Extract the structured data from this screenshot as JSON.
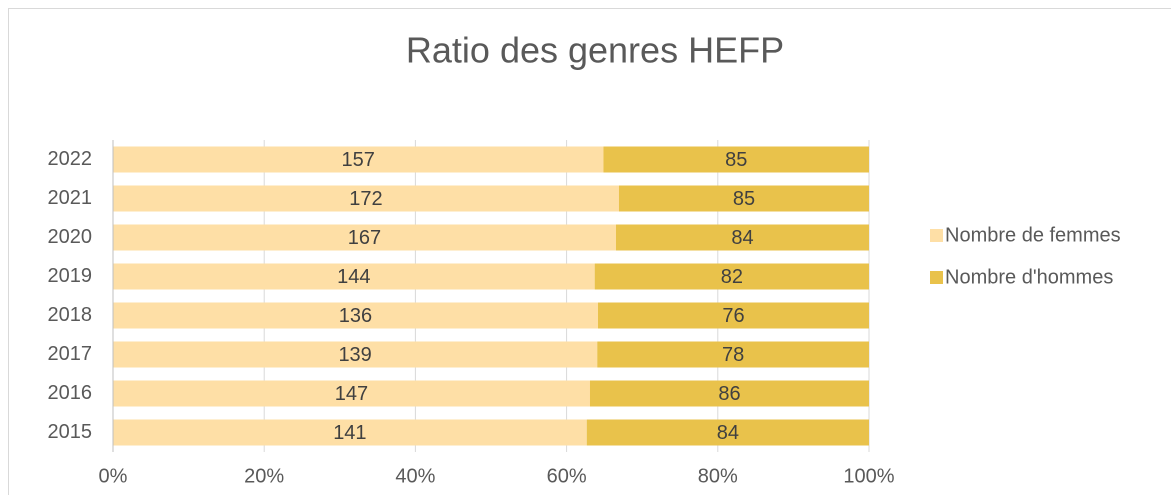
{
  "chart_data": {
    "type": "bar",
    "orientation": "horizontal",
    "stacking": "percent",
    "title": "Ratio des genres HEFP",
    "categories": [
      "2022",
      "2021",
      "2020",
      "2019",
      "2018",
      "2017",
      "2016",
      "2015"
    ],
    "series": [
      {
        "name": "Nombre de femmes",
        "color": "#fedfa6",
        "values": [
          157,
          172,
          167,
          144,
          136,
          139,
          147,
          141
        ]
      },
      {
        "name": "Nombre d'hommes",
        "color": "#e9c24b",
        "values": [
          85,
          85,
          84,
          82,
          76,
          78,
          86,
          84
        ]
      }
    ],
    "xlim": [
      0,
      100
    ],
    "xticks": [
      {
        "value": 0,
        "label": "0%"
      },
      {
        "value": 20,
        "label": "20%"
      },
      {
        "value": 40,
        "label": "40%"
      },
      {
        "value": 60,
        "label": "60%"
      },
      {
        "value": 80,
        "label": "80%"
      },
      {
        "value": 100,
        "label": "100%"
      }
    ],
    "grid": true,
    "legend": "right"
  }
}
